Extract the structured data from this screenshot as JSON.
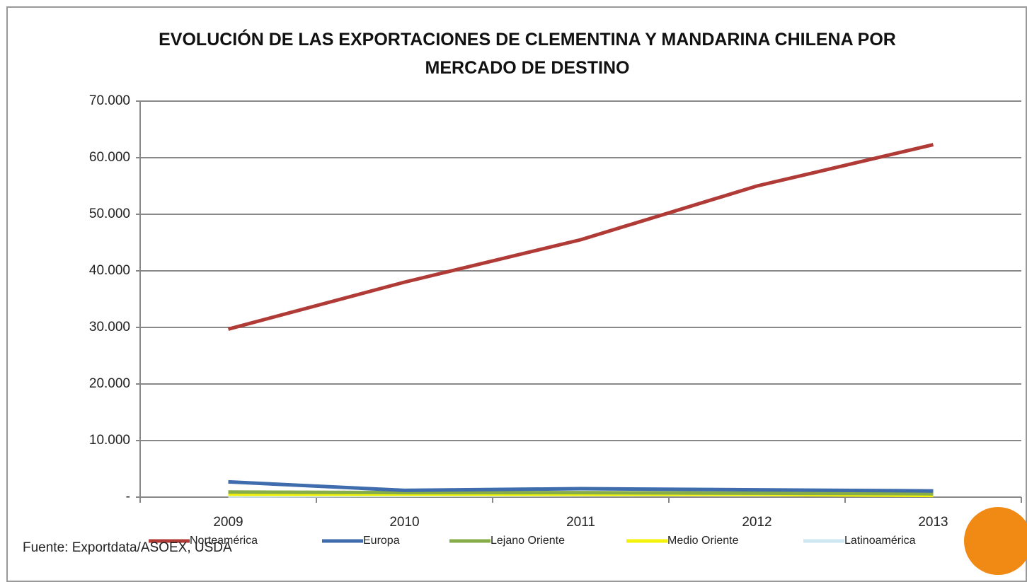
{
  "chart_data": {
    "type": "line",
    "title": "EVOLUCIÓN DE LAS EXPORTACIONES DE CLEMENTINA Y MANDARINA CHILENA POR MERCADO DE DESTINO",
    "categories": [
      "2009",
      "2010",
      "2011",
      "2012",
      "2013"
    ],
    "series": [
      {
        "name": "Norteamérica",
        "color": "#b03a36",
        "values": [
          29700,
          38000,
          45500,
          55000,
          62300
        ]
      },
      {
        "name": "Europa",
        "color": "#3f6cad",
        "values": [
          2700,
          1200,
          1500,
          1300,
          1100
        ]
      },
      {
        "name": "Lejano Oriente",
        "color": "#86ad4a",
        "values": [
          900,
          800,
          800,
          700,
          600
        ]
      },
      {
        "name": "Medio Oriente",
        "color": "#f2f20a",
        "values": [
          500,
          500,
          500,
          500,
          300
        ]
      },
      {
        "name": "Latinoamérica",
        "color": "#cfe6f3",
        "values": [
          200,
          300,
          400,
          500,
          600
        ]
      }
    ],
    "ylim": [
      0,
      70000
    ],
    "yticks": [
      {
        "value": 0,
        "label": "-"
      },
      {
        "value": 10000,
        "label": "10.000"
      },
      {
        "value": 20000,
        "label": "20.000"
      },
      {
        "value": 30000,
        "label": "30.000"
      },
      {
        "value": 40000,
        "label": "40.000"
      },
      {
        "value": 50000,
        "label": "50.000"
      },
      {
        "value": 60000,
        "label": "60.000"
      },
      {
        "value": 70000,
        "label": "70.000"
      }
    ],
    "grid": true,
    "source": "Fuente: Exportdata/ASOEX, USDA"
  }
}
